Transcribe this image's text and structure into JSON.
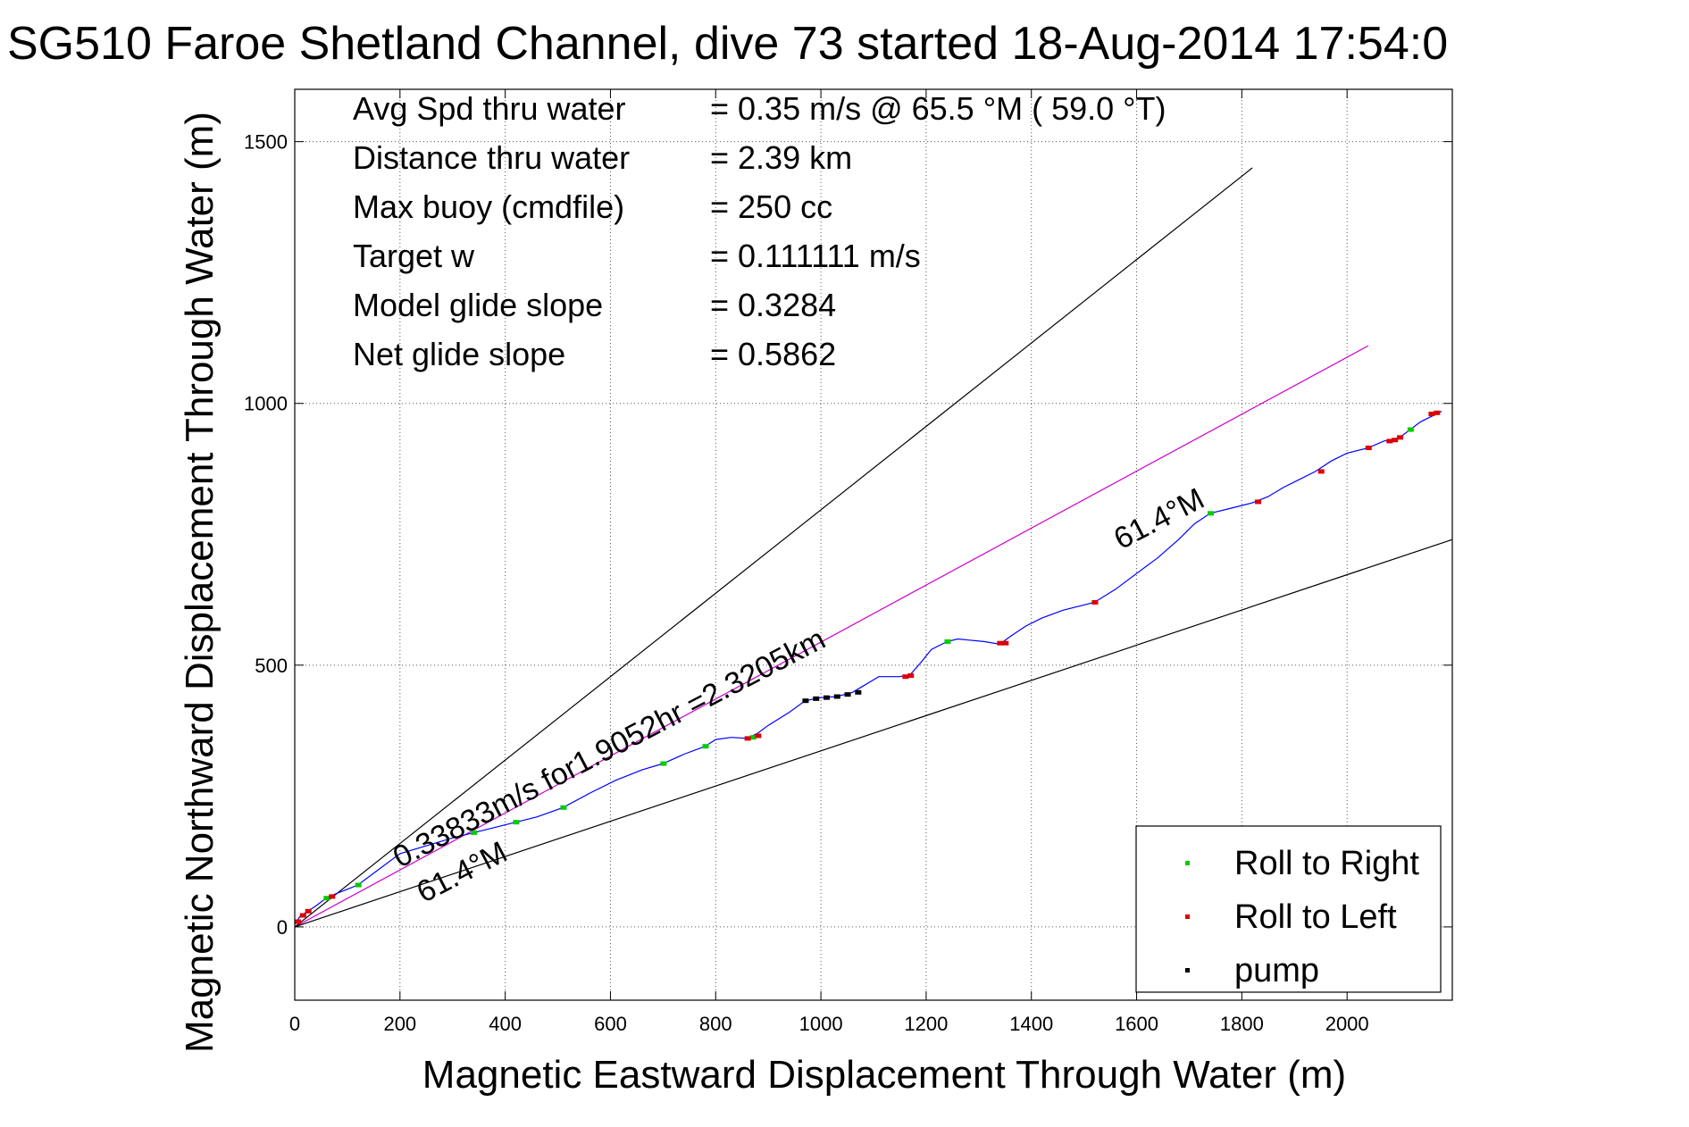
{
  "chart_data": {
    "type": "line",
    "title": "SG510 Faroe Shetland Channel, dive 73 started 18-Aug-2014 17:54:0",
    "xlabel": "Magnetic Eastward Displacement Through Water (m)",
    "ylabel": "Magnetic Northward Displacement Through Water (m)",
    "xlim": [
      0,
      2200
    ],
    "ylim": [
      -140,
      1600
    ],
    "xticks": [
      0,
      200,
      400,
      600,
      800,
      1000,
      1200,
      1400,
      1600,
      1800,
      2000
    ],
    "yticks": [
      0,
      500,
      1000,
      1500
    ],
    "grid": true,
    "legend_position": "bottom-right",
    "legend": [
      {
        "name": "Roll to Right",
        "color": "#00cc00"
      },
      {
        "name": "Roll to Left",
        "color": "#dd0000"
      },
      {
        "name": "pump",
        "color": "#000000"
      }
    ],
    "stats": [
      {
        "label": "Avg Spd thru water",
        "value": "=  0.35 m/s @  65.5 °M ( 59.0 °T)"
      },
      {
        "label": "Distance thru water",
        "value": "=  2.39 km"
      },
      {
        "label": "Max buoy (cmdfile)",
        "value": "= 250 cc"
      },
      {
        "label": "Target w",
        "value": "= 0.111111 m/s"
      },
      {
        "label": "Model glide slope",
        "value": "= 0.3284"
      },
      {
        "label": "Net glide slope",
        "value": "= 0.5862"
      }
    ],
    "annotations": {
      "track_label": "0.33833m/s for1.9052hr =2.3205km",
      "heading_upper": "61.4°M",
      "heading_lower": "61.4°M"
    },
    "series": [
      {
        "name": "",
        "color": "#0000ff",
        "x": [
          0,
          10,
          25,
          40,
          60,
          75,
          95,
          120,
          160,
          200,
          250,
          300,
          340,
          380,
          420,
          460,
          510,
          560,
          610,
          660,
          700,
          740,
          780,
          800,
          830,
          860,
          880,
          900,
          940,
          970,
          1000,
          1030,
          1060,
          1080,
          1110,
          1150,
          1170,
          1190,
          1210,
          1240,
          1260,
          1280,
          1310,
          1340,
          1360,
          1390,
          1420,
          1460,
          1500,
          1520,
          1560,
          1600,
          1640,
          1680,
          1710,
          1740,
          1780,
          1820,
          1850,
          1880,
          1910,
          1940,
          1970,
          2000,
          2040,
          2070,
          2100,
          2120,
          2140,
          2160,
          2180
        ],
        "y": [
          5,
          20,
          30,
          40,
          55,
          62,
          70,
          80,
          110,
          140,
          155,
          170,
          180,
          190,
          200,
          210,
          228,
          255,
          280,
          300,
          312,
          330,
          345,
          358,
          362,
          360,
          370,
          385,
          410,
          432,
          438,
          440,
          448,
          460,
          478,
          478,
          482,
          505,
          530,
          545,
          550,
          548,
          545,
          540,
          555,
          575,
          590,
          605,
          615,
          620,
          645,
          675,
          705,
          740,
          770,
          790,
          800,
          810,
          822,
          840,
          855,
          870,
          890,
          905,
          915,
          928,
          935,
          950,
          965,
          975,
          985
        ]
      },
      {
        "name": "",
        "color": "#cc00cc",
        "x": [
          0,
          2040
        ],
        "y": [
          0,
          1110
        ]
      },
      {
        "name": "",
        "color": "#000000",
        "x": [
          0,
          1820
        ],
        "y": [
          0,
          1450
        ]
      },
      {
        "name": "",
        "color": "#000000",
        "x": [
          0,
          2200
        ],
        "y": [
          0,
          740
        ]
      }
    ],
    "markers": {
      "roll_right_x": [
        60,
        120,
        340,
        420,
        510,
        700,
        780,
        870,
        1240,
        1740,
        2120
      ],
      "roll_right_y": [
        55,
        80,
        180,
        200,
        228,
        312,
        345,
        362,
        545,
        790,
        950
      ],
      "roll_left_x": [
        5,
        15,
        25,
        70,
        860,
        880,
        1160,
        1170,
        1340,
        1350,
        1520,
        1830,
        1950,
        2040,
        2080,
        2090,
        2100,
        2160,
        2170
      ],
      "roll_left_y": [
        10,
        22,
        30,
        58,
        360,
        365,
        478,
        480,
        542,
        542,
        620,
        812,
        870,
        915,
        928,
        930,
        935,
        980,
        982
      ],
      "pump_x": [
        970,
        990,
        1010,
        1030,
        1050,
        1070
      ],
      "pump_y": [
        432,
        436,
        438,
        440,
        444,
        448
      ]
    }
  }
}
